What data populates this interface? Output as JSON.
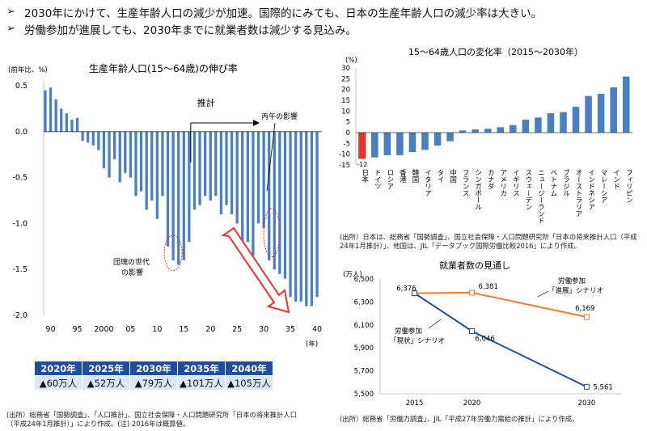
{
  "header": {
    "bullets": [
      "2030年にかけて、生産年齢人口の減少が加速。国際的にみても、日本の生産年齢人口の減少率は大きい。",
      "労働参加が進展しても、2030年までに就業者数は減少する見込み。"
    ],
    "marker": "➢"
  },
  "chart_data": [
    {
      "type": "bar",
      "title": "生産年齢人口(15～64歳)の伸び率",
      "ylabel": "(前年比、%)",
      "xlabel": "(年)",
      "ylim": [
        -2.0,
        0.5
      ],
      "yticks": [
        "0.5",
        "0.0",
        "-0.5",
        "-1.0",
        "-1.5",
        "-2.0"
      ],
      "ytick_values": [
        0.5,
        0.0,
        -0.5,
        -1.0,
        -1.5,
        -2.0
      ],
      "xtick_labels": [
        "90",
        "95",
        "2000",
        "05",
        "10",
        "15",
        "20",
        "25",
        "30",
        "35",
        "40"
      ],
      "xtick_years": [
        1990,
        1995,
        2000,
        2005,
        2010,
        2015,
        2020,
        2025,
        2030,
        2035,
        2040
      ],
      "years": [
        1989,
        1990,
        1991,
        1992,
        1993,
        1994,
        1995,
        1996,
        1997,
        1998,
        1999,
        2000,
        2001,
        2002,
        2003,
        2004,
        2005,
        2006,
        2007,
        2008,
        2009,
        2010,
        2011,
        2012,
        2013,
        2014,
        2015,
        2016,
        2017,
        2018,
        2019,
        2020,
        2021,
        2022,
        2023,
        2024,
        2025,
        2026,
        2027,
        2028,
        2029,
        2030,
        2031,
        2032,
        2033,
        2034,
        2035,
        2036,
        2037,
        2038,
        2039,
        2040
      ],
      "values": [
        0.45,
        0.48,
        0.35,
        0.25,
        0.2,
        0.13,
        0.15,
        -0.1,
        -0.12,
        -0.15,
        -0.2,
        -0.4,
        -0.5,
        -0.3,
        -0.55,
        -0.45,
        -0.5,
        -0.7,
        -0.65,
        -0.85,
        -0.75,
        -0.95,
        -0.7,
        -1.25,
        -1.4,
        -1.45,
        -1.4,
        -1.2,
        -0.85,
        -0.8,
        -0.7,
        -0.75,
        -0.7,
        -0.9,
        -0.8,
        -0.9,
        -1.0,
        -1.2,
        -1.2,
        -1.35,
        -1.0,
        -1.05,
        -1.4,
        -1.5,
        -1.55,
        -1.6,
        -1.8,
        -1.85,
        -1.85,
        -1.9,
        -1.9,
        -1.8
      ],
      "bar_color": "#4a7fc2",
      "annotations": {
        "forecast_label": "推計",
        "hinoeuma": "丙午の影響",
        "dankai_line1": "団塊の世代",
        "dankai_line2": "の影響"
      }
    },
    {
      "type": "bar",
      "title": "15～64歳人口の変化率（2015～2030年）",
      "ylabel": "(%)",
      "ylim": [
        -15,
        30
      ],
      "ytick_values": [
        30,
        25,
        20,
        15,
        10,
        5,
        0,
        -5,
        -10,
        -15
      ],
      "yticks": [
        "30",
        "25",
        "20",
        "15",
        "10",
        "5",
        "0",
        "-5",
        "-10",
        "-15"
      ],
      "categories": [
        "日本",
        "ドイツ",
        "ロシア",
        "香港",
        "韓国",
        "イタリア",
        "タイ",
        "中国",
        "フランス",
        "シンガポール",
        "カナダ",
        "アメリカ",
        "イギリス",
        "スウェーデン",
        "ニュージーランド",
        "ベトナム",
        "ブラジル",
        "オーストラリア",
        "インドネシア",
        "マレーシア",
        "インド",
        "フィリピン"
      ],
      "values": [
        -12,
        -11.5,
        -10.5,
        -10.5,
        -9,
        -8,
        -6,
        -4,
        1,
        1.5,
        1.8,
        2.5,
        3.5,
        6,
        7,
        9,
        9.5,
        12,
        17,
        18,
        21,
        26
      ],
      "highlight_label": "-12",
      "highlight_color": "#e8332a",
      "bar_color": "#4a7fc2"
    },
    {
      "type": "line",
      "title": "就業者数の見通し",
      "ylabel": "(万人)",
      "ylim": [
        5500,
        6500
      ],
      "yticks": [
        "6,500",
        "6,300",
        "6,100",
        "5,900",
        "5,700",
        "5,500"
      ],
      "ytick_values": [
        6500,
        6300,
        6100,
        5900,
        5700,
        5500
      ],
      "x": [
        "2015",
        "2020",
        "2030"
      ],
      "x_values": [
        2015,
        2020,
        2030
      ],
      "series": [
        {
          "name_line1": "労働参加",
          "name_line2": "「進展」シナリオ",
          "values": [
            6376,
            6381,
            6169
          ],
          "value_labels": [
            "6,376",
            "6,381",
            "6,169"
          ],
          "color": "#ed7d31"
        },
        {
          "name_line1": "労働参加",
          "name_line2": "「現状」シナリオ",
          "values": [
            6376,
            6046,
            5561
          ],
          "value_labels": [
            "",
            "6,046",
            "5,561"
          ],
          "color": "#1f4e9c"
        }
      ]
    }
  ],
  "table": {
    "headers": [
      "2020年",
      "2025年",
      "2030年",
      "2035年",
      "2040年"
    ],
    "values": [
      "▲60万人",
      "▲52万人",
      "▲79万人",
      "▲101万人",
      "▲105万人"
    ]
  },
  "sources": {
    "left": [
      "(出所）総務省「国勢調査」、「人口推計」、国立社会保障・人口問題研究所「日本の将来推計人口",
      "（平成24年1月推計）」により作成。(注) 2016年は概算値。"
    ],
    "top_right": [
      "(出所）日本は、総務省「国勢調査」、国立社会保障・人口問題研究所「日本の将来推計人口（平成",
      "24年1月推計）」、他国は、JIL「データブック国際労働比較2016」により作成。"
    ],
    "bottom_right": [
      "(出所）総務省「労働力調査」、JIL「平成27年労働力需給の推計」により作成。"
    ]
  }
}
